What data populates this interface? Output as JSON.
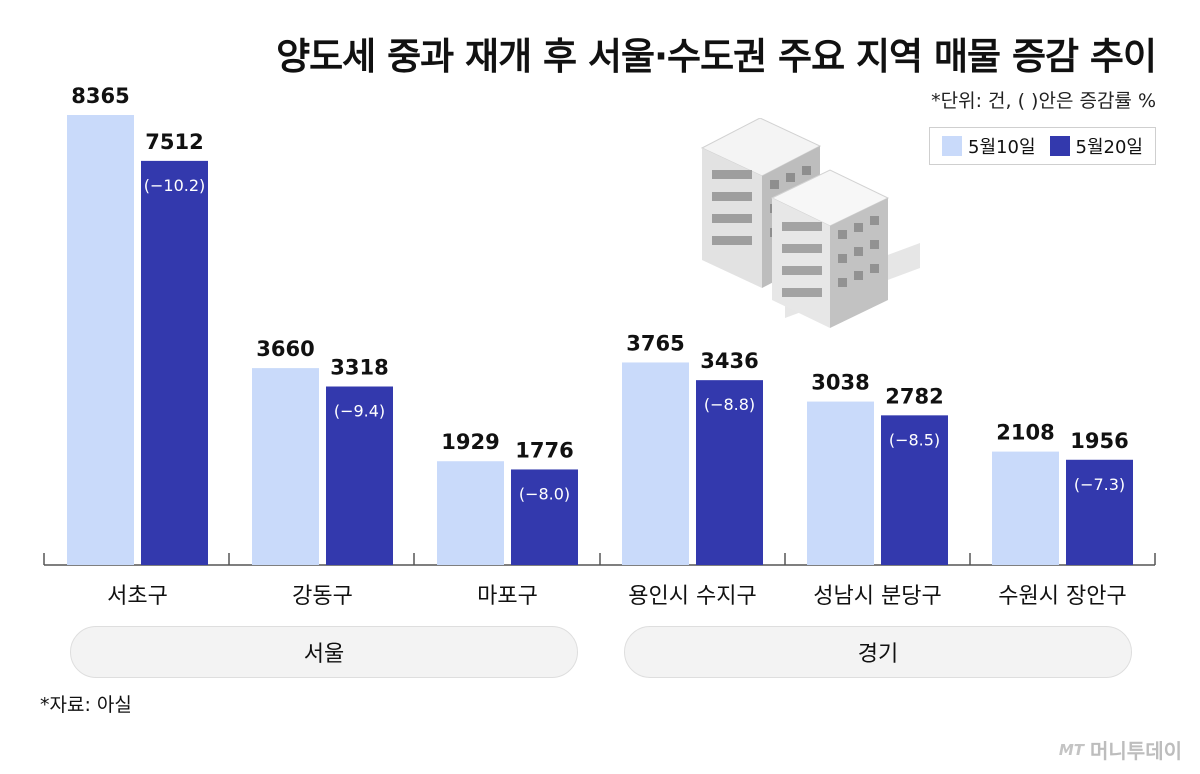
{
  "title": "양도세 중과 재개 후 서울·수도권 주요 지역 매물 증감 추이",
  "unit_note": "*단위: 건, ( )안은 증감률 %",
  "source": "*자료: 아실",
  "logo": {
    "mark": "MT",
    "text": "머니투데이"
  },
  "colors": {
    "series_1": "#c9dafa",
    "series_2": "#3339ad",
    "axis": "#555555"
  },
  "chart_data": {
    "type": "bar",
    "categories": [
      "서초구",
      "강동구",
      "마포구",
      "용인시 수지구",
      "성남시 분당구",
      "수원시 장안구"
    ],
    "series": [
      {
        "name": "5월10일",
        "values": [
          8365,
          3660,
          1929,
          3765,
          3038,
          2108
        ]
      },
      {
        "name": "5월20일",
        "values": [
          7512,
          3318,
          1776,
          3436,
          2782,
          1956
        ]
      }
    ],
    "change_labels": [
      "(−10.2)",
      "(−9.4)",
      "(−8.0)",
      "(−8.8)",
      "(−8.5)",
      "(−7.3)"
    ],
    "groups": [
      {
        "name": "서울",
        "categories": [
          "서초구",
          "강동구",
          "마포구"
        ]
      },
      {
        "name": "경기",
        "categories": [
          "용인시 수지구",
          "성남시 분당구",
          "수원시 장안구"
        ]
      }
    ],
    "ylim": [
      0,
      10000
    ],
    "xlabel": "",
    "ylabel": "",
    "grid": false,
    "legend": "top-right"
  }
}
